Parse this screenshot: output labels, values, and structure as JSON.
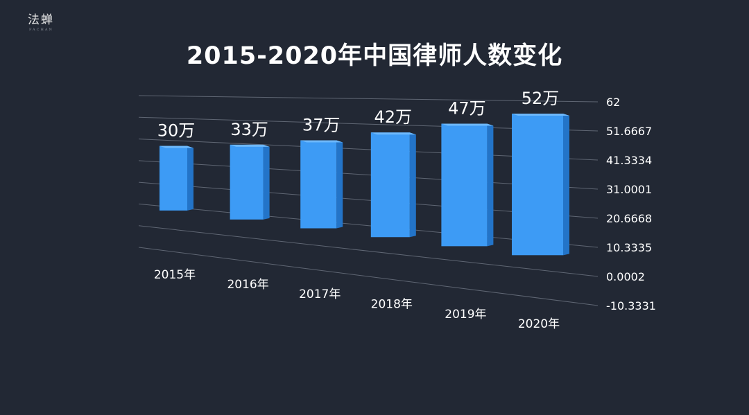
{
  "brand": {
    "logo": "法蝉",
    "logo_sub": "FACHAN"
  },
  "colors": {
    "background": "#222834",
    "bar_front": "#3d9bf5",
    "bar_side": "#2374c8",
    "bar_top": "#6db8fb",
    "text": "#ffffff",
    "grid": "#5f6673"
  },
  "chart_data": {
    "type": "bar",
    "title": "2015-2020年中国律师人数变化",
    "categories": [
      "2015年",
      "2016年",
      "2017年",
      "2018年",
      "2019年",
      "2020年"
    ],
    "values": [
      30,
      33,
      37,
      42,
      47,
      52
    ],
    "data_labels": [
      "30万",
      "33万",
      "37万",
      "42万",
      "47万",
      "52万"
    ],
    "yticks": [
      "62",
      "51.6667",
      "41.3334",
      "31.0001",
      "20.6668",
      "10.3335",
      "0.0002",
      "-10.3331"
    ],
    "ylim": [
      -10.3331,
      62
    ],
    "grid": true,
    "style": "3d-perspective"
  }
}
